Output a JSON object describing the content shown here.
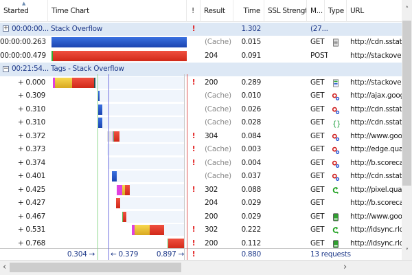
{
  "columns": {
    "started": "Started",
    "time_chart": "Time Chart",
    "flag": "!",
    "result": "Result",
    "time": "Time",
    "ssl": "SSL Strength",
    "method": "M...",
    "type": "Type",
    "url": "URL"
  },
  "colors": {
    "script": "#2255cc",
    "wait": "#e8c030",
    "receive": "#e83a2a",
    "dns": "#e040e0",
    "connect": "#60c060",
    "blocked": "#d8d8d8",
    "group_bg": "#dde8f5",
    "domcontent_line": "#8fd88f",
    "load_line": "#7070e0",
    "end_line": "#e05050"
  },
  "groups": [
    {
      "started": "00:00:00...",
      "title": "Stack Overflow",
      "flag": "!",
      "time": "1.302",
      "method": "(27...",
      "expanded": false,
      "rows": [
        {
          "started": "00:00:00.263",
          "result": "(Cache)",
          "time": "0.015",
          "method": "GET",
          "type": "document-icon",
          "url": "http://cdn.sstatic.n",
          "bar": "blue"
        },
        {
          "started": "00:00:00.479",
          "result": "204",
          "time": "0.091",
          "method": "POST",
          "type": "",
          "url": "http://stackoverflo",
          "bar": "red"
        }
      ]
    },
    {
      "started": "00:21:54...",
      "title": "Tags - Stack Overflow",
      "expanded": true,
      "rows": [
        {
          "started": "+ 0.000",
          "flag": "!",
          "result": "200",
          "time": "0.289",
          "method": "GET",
          "type": "html-icon",
          "url": "http://stackoverflo",
          "start": 0.0,
          "segments": [
            [
              "dns",
              0.014
            ],
            [
              "wait",
              0.117
            ],
            [
              "receive",
              0.15
            ],
            [
              "end",
              0.008
            ]
          ]
        },
        {
          "started": "+ 0.309",
          "result": "(Cache)",
          "time": "0.010",
          "method": "GET",
          "type": "script-icon",
          "url": "http://ajax.googlea",
          "start": 0.309,
          "segments": [
            [
              "script",
              0.01
            ]
          ]
        },
        {
          "started": "+ 0.310",
          "result": "(Cache)",
          "time": "0.026",
          "method": "GET",
          "type": "script-icon",
          "url": "http://cdn.sstatic.n",
          "start": 0.31,
          "segments": [
            [
              "script",
              0.026
            ]
          ]
        },
        {
          "started": "+ 0.310",
          "result": "(Cache)",
          "time": "0.028",
          "method": "GET",
          "type": "css-icon",
          "url": "http://cdn.sstatic.n",
          "start": 0.312,
          "segments": [
            [
              "script",
              0.028
            ]
          ]
        },
        {
          "started": "+ 0.372",
          "flag": "!",
          "result": "304",
          "time": "0.084",
          "method": "GET",
          "type": "script-icon",
          "url": "http://www.google",
          "start": 0.372,
          "segments": [
            [
              "blocked",
              0.036
            ],
            [
              "dns",
              0.005
            ],
            [
              "connect",
              0.004
            ],
            [
              "receive",
              0.039
            ]
          ]
        },
        {
          "started": "+ 0.373",
          "flag": "!",
          "result": "(Cache)",
          "time": "0.003",
          "method": "GET",
          "type": "script-icon",
          "url": "http://edge.quants",
          "start": 0.373,
          "segments": []
        },
        {
          "started": "+ 0.374",
          "flag": "!",
          "result": "(Cache)",
          "time": "0.004",
          "method": "GET",
          "type": "script-icon",
          "url": "http://b.scorecardr",
          "start": 0.374,
          "segments": []
        },
        {
          "started": "+ 0.401",
          "result": "(Cache)",
          "time": "0.037",
          "method": "GET",
          "type": "script-icon",
          "url": "http://cdn.sstatic.n",
          "start": 0.405,
          "segments": [
            [
              "script",
              0.033
            ]
          ]
        },
        {
          "started": "+ 0.425",
          "flag": "!",
          "result": "302",
          "time": "0.088",
          "method": "GET",
          "type": "redirect-icon",
          "url": "http://pixel.quants",
          "start": 0.437,
          "segments": [
            [
              "dns",
              0.038
            ],
            [
              "wait",
              0.019
            ],
            [
              "receive",
              0.031
            ]
          ]
        },
        {
          "started": "+ 0.427",
          "result": "204",
          "time": "0.029",
          "method": "GET",
          "type": "",
          "url": "http://b.scorecardr",
          "start": 0.432,
          "segments": [
            [
              "receive",
              0.029
            ]
          ]
        },
        {
          "started": "+ 0.467",
          "result": "200",
          "time": "0.029",
          "method": "GET",
          "type": "image-icon",
          "url": "http://www.google",
          "start": 0.475,
          "segments": [
            [
              "connect",
              0.004
            ],
            [
              "receive",
              0.025
            ]
          ]
        },
        {
          "started": "+ 0.531",
          "flag": "!",
          "result": "302",
          "time": "0.222",
          "method": "GET",
          "type": "redirect-icon",
          "url": "http://idsync.rlcdn.",
          "start": 0.54,
          "segments": [
            [
              "dns",
              0.019
            ],
            [
              "wait",
              0.103
            ],
            [
              "receive",
              0.1
            ]
          ]
        },
        {
          "started": "+ 0.768",
          "flag": "!",
          "result": "200",
          "time": "0.112",
          "method": "GET",
          "type": "image-icon",
          "url": "http://idsync.rlcdn.",
          "start": 0.785,
          "segments": [
            [
              "connect",
              0.005
            ],
            [
              "receive",
              0.107
            ]
          ]
        }
      ]
    }
  ],
  "footer": {
    "domcontent": "0.304 →",
    "load": "← 0.379",
    "end": "0.897 →",
    "flag": "!",
    "time": "0.880",
    "requests": "13 requests"
  },
  "markers": {
    "domcontent": 0.304,
    "load": 0.379,
    "end": 0.897
  },
  "scroll": {
    "up": "˄",
    "down": "˅",
    "left": "‹",
    "right": "›"
  }
}
